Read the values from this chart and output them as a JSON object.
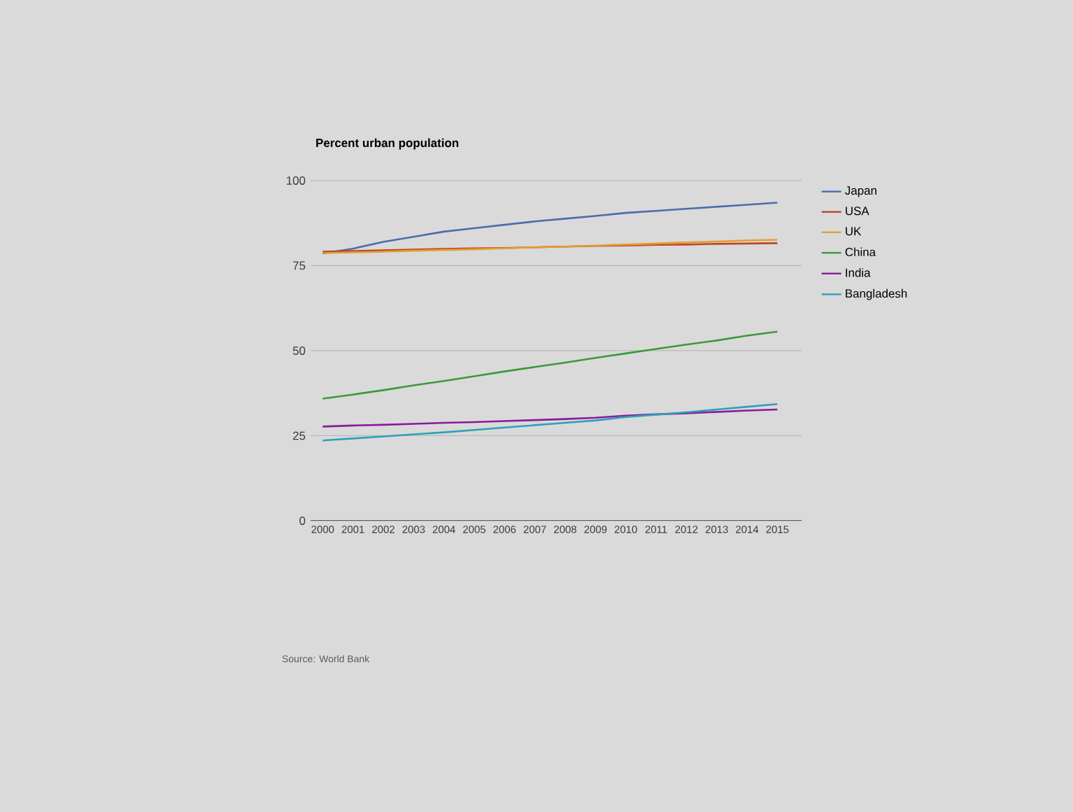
{
  "chart_data": {
    "type": "line",
    "title": "Percent urban population",
    "x": [
      2000,
      2001,
      2002,
      2003,
      2004,
      2005,
      2006,
      2007,
      2008,
      2009,
      2010,
      2011,
      2012,
      2013,
      2014,
      2015
    ],
    "xlim": [
      1999.6,
      2015.8
    ],
    "xticks": [
      2000,
      2001,
      2002,
      2003,
      2004,
      2005,
      2006,
      2007,
      2008,
      2009,
      2010,
      2011,
      2012,
      2013,
      2014,
      2015
    ],
    "ylim": [
      0,
      100
    ],
    "yticks": [
      0,
      25,
      50,
      75,
      100
    ],
    "grid": "y",
    "legend": "right",
    "series": [
      {
        "name": "Japan",
        "color": "#4a6cb0",
        "values": [
          78.6,
          80.0,
          82.0,
          83.5,
          85.0,
          86.0,
          87.0,
          88.0,
          88.8,
          89.6,
          90.5,
          91.1,
          91.7,
          92.3,
          92.9,
          93.5
        ]
      },
      {
        "name": "USA",
        "color": "#c0442a",
        "values": [
          79.1,
          79.3,
          79.5,
          79.7,
          79.9,
          80.1,
          80.2,
          80.4,
          80.6,
          80.8,
          80.9,
          81.1,
          81.2,
          81.4,
          81.5,
          81.6
        ]
      },
      {
        "name": "UK",
        "color": "#e0a030",
        "values": [
          78.7,
          78.9,
          79.1,
          79.4,
          79.6,
          79.8,
          80.1,
          80.4,
          80.6,
          80.9,
          81.2,
          81.5,
          81.8,
          82.1,
          82.4,
          82.6
        ]
      },
      {
        "name": "China",
        "color": "#3a9a3a",
        "values": [
          35.9,
          37.1,
          38.4,
          39.8,
          41.1,
          42.5,
          43.9,
          45.2,
          46.5,
          47.9,
          49.2,
          50.5,
          51.8,
          53.0,
          54.4,
          55.6
        ]
      },
      {
        "name": "India",
        "color": "#8a1a9a",
        "values": [
          27.7,
          28.0,
          28.2,
          28.5,
          28.8,
          29.0,
          29.3,
          29.6,
          29.9,
          30.3,
          30.9,
          31.3,
          31.6,
          32.0,
          32.4,
          32.7
        ]
      },
      {
        "name": "Bangladesh",
        "color": "#2fa0b8",
        "values": [
          23.6,
          24.2,
          24.8,
          25.4,
          26.0,
          26.7,
          27.4,
          28.1,
          28.8,
          29.5,
          30.5,
          31.2,
          31.9,
          32.7,
          33.5,
          34.3
        ]
      }
    ],
    "annotations": [
      "Source: World Bank"
    ]
  }
}
